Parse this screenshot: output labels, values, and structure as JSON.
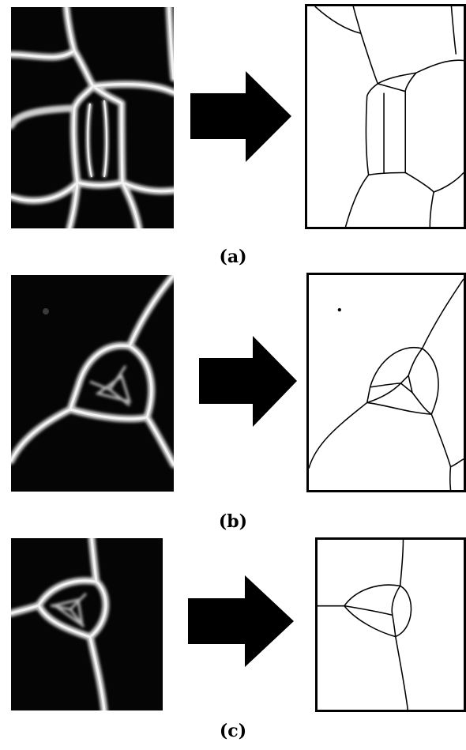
{
  "figure": {
    "panels": [
      {
        "id": "a",
        "caption": "(a)"
      },
      {
        "id": "b",
        "caption": "(b)"
      },
      {
        "id": "c",
        "caption": "(c)"
      }
    ],
    "colors": {
      "background": "#ffffff",
      "micrograph_bg": "#050505",
      "wall_glow": "#e6e6e6",
      "line": "#000000",
      "arrow": "#000000"
    },
    "icons": [
      "micrograph-image",
      "right-arrow-icon",
      "segmentation-image"
    ]
  }
}
